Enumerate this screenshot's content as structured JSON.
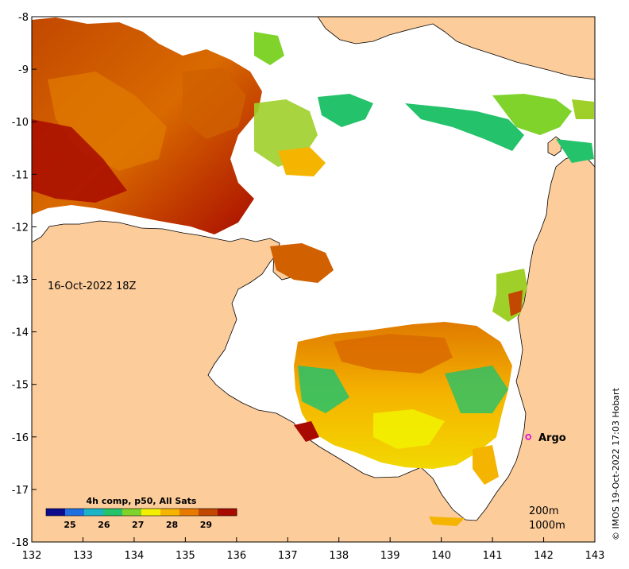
{
  "chart_data": {
    "type": "heatmap",
    "subject": "sea surface temperature",
    "x_ticks": [
      132,
      133,
      134,
      135,
      136,
      137,
      138,
      139,
      140,
      141,
      142,
      143
    ],
    "y_ticks": [
      -8,
      -9,
      -10,
      -11,
      -12,
      -13,
      -14,
      -15,
      -16,
      -17,
      -18
    ],
    "xlim": [
      132,
      143
    ],
    "ylim": [
      -18,
      -8
    ],
    "colorbar": {
      "title": "4h comp, p50, All Sats",
      "ticks": [
        25,
        26,
        27,
        28,
        29
      ],
      "range": [
        24.3,
        29.9
      ],
      "colors": [
        "#0b0b8c",
        "#1e6fe0",
        "#19b4c8",
        "#24c26a",
        "#7fd32a",
        "#f2f000",
        "#f5b400",
        "#e87a00",
        "#c24800",
        "#a80a00"
      ]
    },
    "date_label": "16-Oct-2022 18Z",
    "isobaths": [
      "200m",
      "1000m"
    ],
    "argo": {
      "label": "Argo",
      "lon": 141.7,
      "lat": -16.0,
      "color": "#e000e0"
    },
    "credit": "© IMOS 19-Oct-2022 17:03 Hobart",
    "colors": {
      "land": "#fccc9b",
      "ocean_nodata": "#ffffff"
    }
  }
}
